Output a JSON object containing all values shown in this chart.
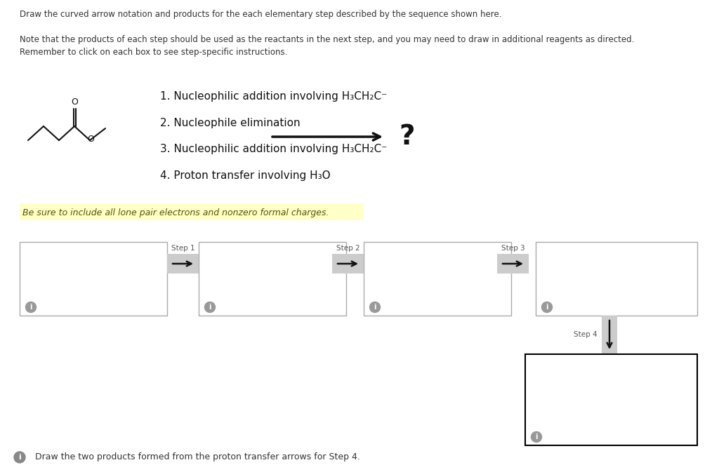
{
  "bg_color": "#ffffff",
  "title_text": "Draw the curved arrow notation and products for the each elementary step described by the sequence shown here.",
  "note_line1": "Note that the products of each step should be used as the reactants in the next step, and you may need to draw in additional reagents as directed.",
  "note_line2": "Remember to click on each box to see step-specific instructions.",
  "step1_text": "1. Nucleophilic addition involving H₃CH₂C⁻",
  "step2_text": "2. Nucleophile elimination",
  "step3_text": "3. Nucleophilic addition involving H₃CH₂C⁻",
  "step4_text": "4. Proton transfer involving H₃O",
  "warning_text": "Be sure to include all lone pair electrons and nonzero formal charges.",
  "warning_bg": "#ffffc8",
  "bottom_note": "Draw the two products formed from the proton transfer arrows for Step 4.",
  "step_labels": [
    "Step 1",
    "Step 2",
    "Step 3"
  ],
  "step4_label": "Step 4",
  "info_i": "i"
}
